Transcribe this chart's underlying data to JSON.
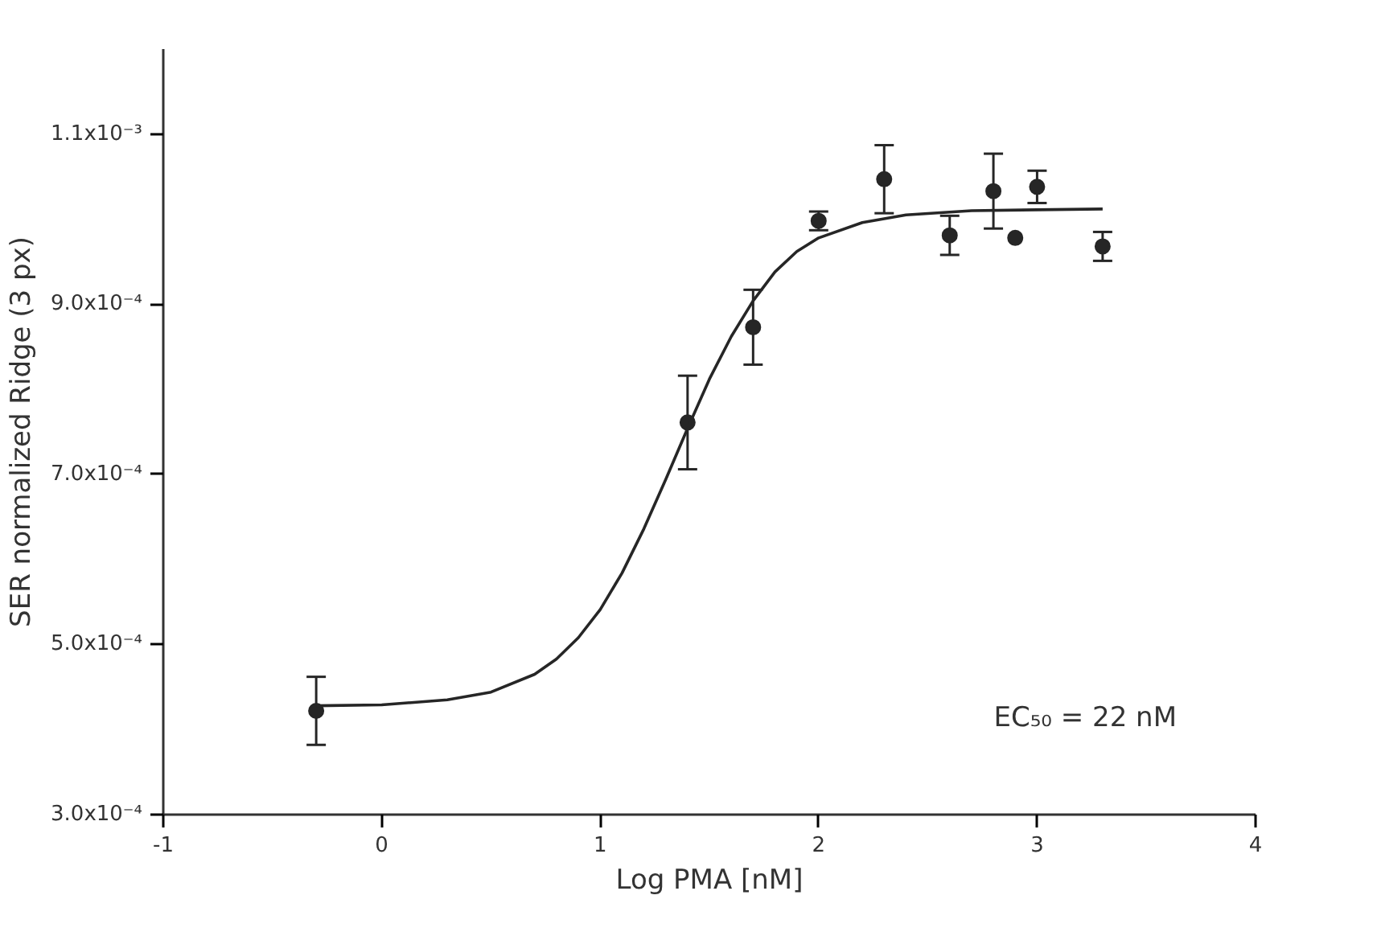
{
  "chart_data": {
    "type": "scatter",
    "xlabel": "Log PMA [nM]",
    "ylabel": "SER normalized Ridge (3 px)",
    "xlim": [
      -1,
      4
    ],
    "xticks": [
      -1,
      0,
      1,
      2,
      3,
      4
    ],
    "ylim": [
      0.0003,
      0.0012
    ],
    "yticks": [
      {
        "value": 0.0003,
        "label": "3.0x10⁻⁴"
      },
      {
        "value": 0.0005,
        "label": "5.0x10⁻⁴"
      },
      {
        "value": 0.0007,
        "label": "7.0x10⁻⁴"
      },
      {
        "value": 0.0009,
        "label": "9.0x10⁻⁴"
      },
      {
        "value": 0.0011,
        "label": "1.1x10⁻³"
      }
    ],
    "grid": false,
    "annotations": [
      "EC₅₀ = 22 nM"
    ],
    "series": [
      {
        "marker": "circle",
        "color": "#262626",
        "x": [
          -0.3,
          1.4,
          1.7,
          2.0,
          2.3,
          2.6,
          2.8,
          2.9,
          3.0,
          3.3
        ],
        "values": [
          0.000422,
          0.000761,
          0.000873,
          0.000998,
          0.001047,
          0.000981,
          0.001033,
          0.000978,
          0.001038,
          0.000968
        ],
        "errors": [
          4e-05,
          5.5e-05,
          4.4e-05,
          1.1e-05,
          4e-05,
          2.3e-05,
          4.4e-05,
          null,
          1.9e-05,
          1.7e-05
        ]
      },
      {
        "type": "line",
        "color": "#262626",
        "line_style": "solid",
        "x": [
          -0.3,
          0,
          0.3,
          0.5,
          0.7,
          0.8,
          0.9,
          1.0,
          1.1,
          1.2,
          1.3,
          1.4,
          1.5,
          1.6,
          1.7,
          1.8,
          1.9,
          2.0,
          2.2,
          2.4,
          2.7,
          3.0,
          3.3
        ],
        "values": [
          0.000428,
          0.000429,
          0.000435,
          0.000444,
          0.000465,
          0.000483,
          0.000508,
          0.000541,
          0.000584,
          0.000636,
          0.000694,
          0.000754,
          0.000812,
          0.000862,
          0.000904,
          0.000938,
          0.000962,
          0.000978,
          0.000996,
          0.001005,
          0.00101,
          0.001011,
          0.001012
        ]
      }
    ]
  }
}
